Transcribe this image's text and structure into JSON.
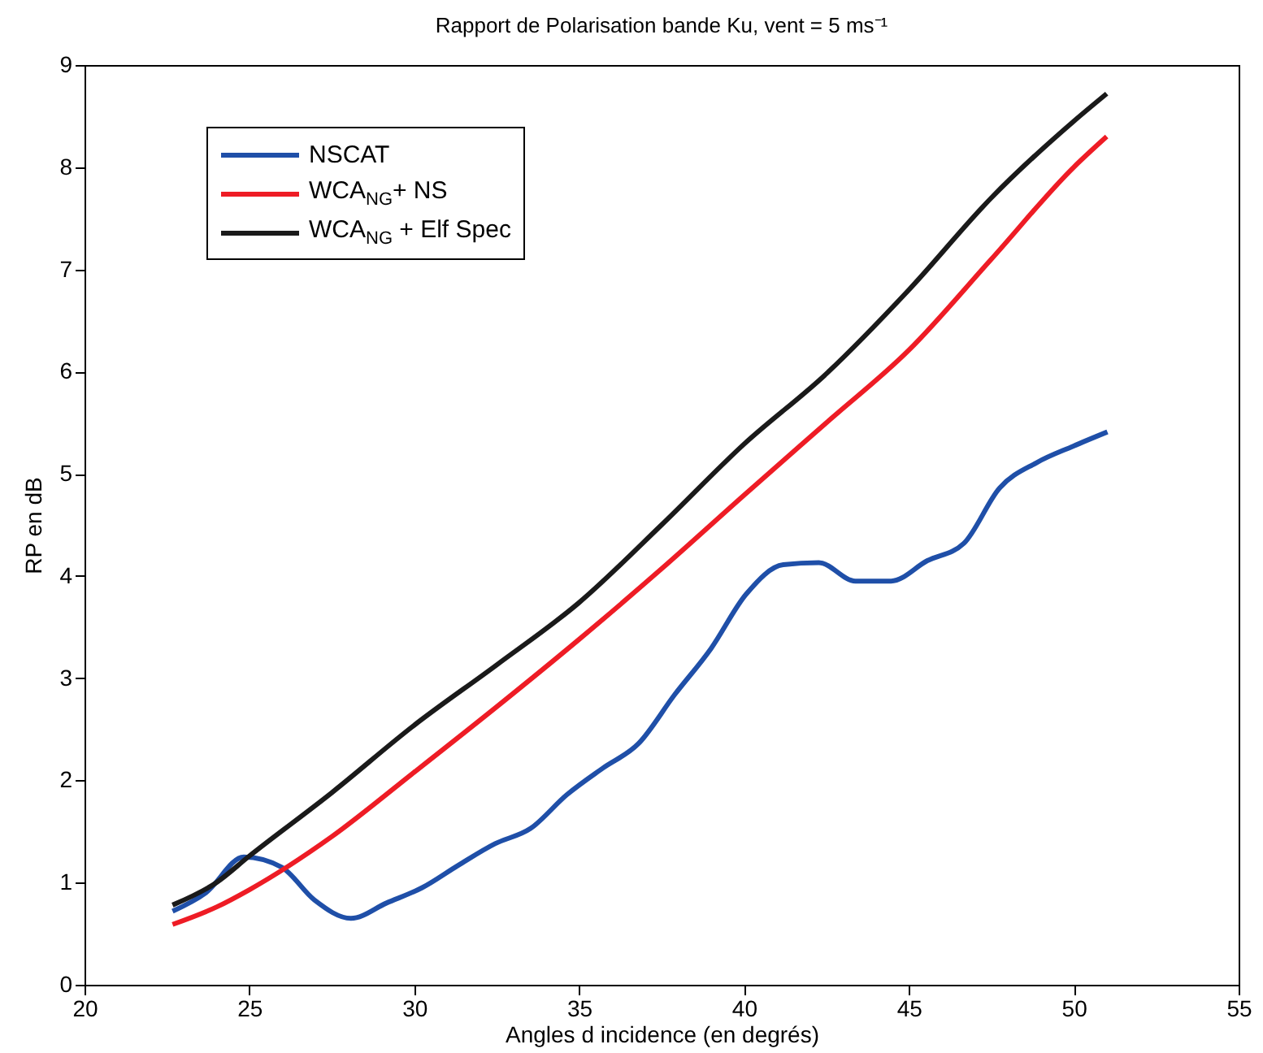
{
  "chart_data": {
    "type": "line",
    "title": "Rapport de Polarisation bande Ku, vent = 5 ms⁻¹",
    "xlabel": "Angles d incidence (en degrés)",
    "ylabel": "RP en dB",
    "xlim": [
      20,
      55
    ],
    "xticks": [
      20,
      25,
      30,
      35,
      40,
      45,
      50,
      55
    ],
    "ylim": [
      0,
      9
    ],
    "yticks": [
      0,
      1,
      2,
      3,
      4,
      5,
      6,
      7,
      8,
      9
    ],
    "grid": false,
    "legend": "top left",
    "line_style": "solid",
    "marker": "none",
    "series": [
      {
        "name": "NSCAT",
        "color": "#1f4fa8",
        "x": [
          22.67,
          23.68,
          24.83,
          25.98,
          26.97,
          28.08,
          29.16,
          30.24,
          31.34,
          32.45,
          33.53,
          34.63,
          35.72,
          36.8,
          37.9,
          39.0,
          40.06,
          41.19,
          42.27,
          43.38,
          44.46,
          45.56,
          46.67,
          47.75,
          48.88,
          49.98,
          51.02
        ],
        "values": [
          0.72,
          0.9,
          1.25,
          1.15,
          0.83,
          0.65,
          0.8,
          0.95,
          1.17,
          1.38,
          1.53,
          1.86,
          2.12,
          2.36,
          2.84,
          3.29,
          3.82,
          4.11,
          4.13,
          3.95,
          3.95,
          4.15,
          4.32,
          4.86,
          5.11,
          5.27,
          5.41
        ]
      },
      {
        "name": "WCA$_{NG}$+ NS",
        "color": "#ee1c25",
        "x": [
          22.67,
          24,
          25,
          27.5,
          30,
          32.5,
          35,
          37.5,
          40,
          42.5,
          45,
          47.5,
          50,
          51
        ],
        "values": [
          0.59,
          0.76,
          0.93,
          1.45,
          2.08,
          2.72,
          3.38,
          4.07,
          4.79,
          5.5,
          6.21,
          7.1,
          8.0,
          8.3
        ]
      },
      {
        "name": "WCA$_{NG}$ + Elf Spec",
        "color": "#1a1a1a",
        "x": [
          22.67,
          24,
          25,
          27.5,
          30,
          32.5,
          35,
          37.5,
          40,
          42.5,
          45,
          47.5,
          50,
          51
        ],
        "values": [
          0.78,
          1.0,
          1.26,
          1.88,
          2.54,
          3.13,
          3.74,
          4.5,
          5.29,
          5.98,
          6.8,
          7.7,
          8.45,
          8.72
        ]
      }
    ]
  }
}
